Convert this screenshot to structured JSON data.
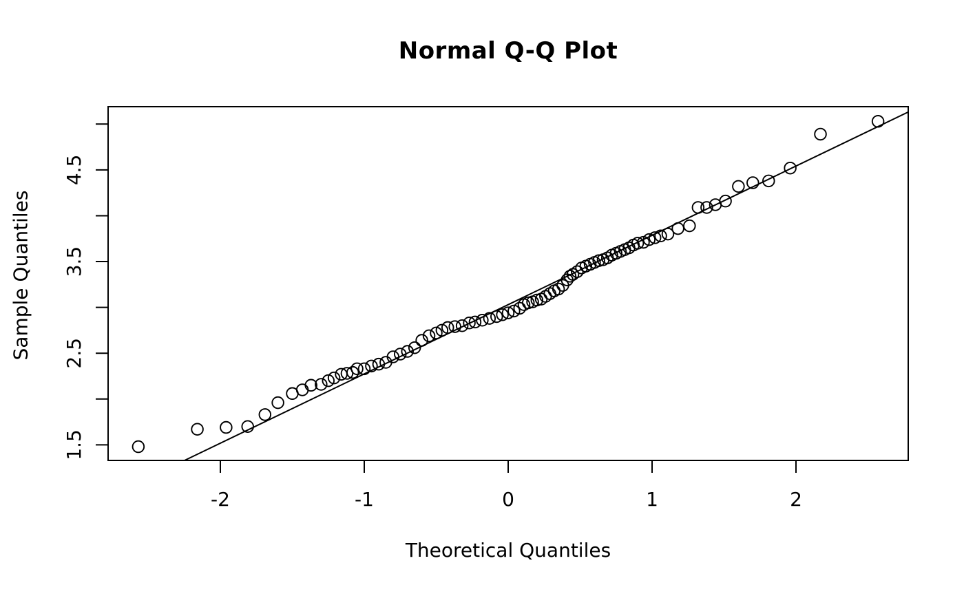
{
  "chart_data": {
    "type": "scatter",
    "title": "Normal Q-Q Plot",
    "xlabel": "Theoretical Quantiles",
    "ylabel": "Sample Quantiles",
    "xlim": [
      -2.78,
      2.78
    ],
    "ylim": [
      1.33,
      5.19
    ],
    "grid": false,
    "legend": "none",
    "x_ticks": [
      {
        "value": -2,
        "label": "-2"
      },
      {
        "value": -1,
        "label": "-1"
      },
      {
        "value": 0,
        "label": "0"
      },
      {
        "value": 1,
        "label": "1"
      },
      {
        "value": 2,
        "label": "2"
      }
    ],
    "y_ticks": [
      {
        "value": 1.5,
        "label": "1.5"
      },
      {
        "value": 2.0,
        "label": ""
      },
      {
        "value": 2.5,
        "label": "2.5"
      },
      {
        "value": 3.0,
        "label": ""
      },
      {
        "value": 3.5,
        "label": "3.5"
      },
      {
        "value": 4.0,
        "label": ""
      },
      {
        "value": 4.5,
        "label": "4.5"
      },
      {
        "value": 5.0,
        "label": ""
      }
    ],
    "ref_line": {
      "intercept": 3.03,
      "slope": 0.756
    },
    "colors": {
      "foreground": "#000000",
      "background": "#ffffff"
    },
    "marker": {
      "shape": "open-circle",
      "radius_px": 8.3,
      "stroke_px": 1.9
    },
    "points": [
      [
        -2.57,
        1.48
      ],
      [
        -2.16,
        1.67
      ],
      [
        -1.96,
        1.69
      ],
      [
        -1.81,
        1.7
      ],
      [
        -1.69,
        1.83
      ],
      [
        -1.6,
        1.96
      ],
      [
        -1.5,
        2.06
      ],
      [
        -1.43,
        2.1
      ],
      [
        -1.37,
        2.15
      ],
      [
        -1.3,
        2.16
      ],
      [
        -1.25,
        2.2
      ],
      [
        -1.21,
        2.23
      ],
      [
        -1.16,
        2.27
      ],
      [
        -1.12,
        2.28
      ],
      [
        -1.08,
        2.29
      ],
      [
        -1.05,
        2.33
      ],
      [
        -1.0,
        2.33
      ],
      [
        -0.95,
        2.36
      ],
      [
        -0.9,
        2.38
      ],
      [
        -0.85,
        2.4
      ],
      [
        -0.8,
        2.46
      ],
      [
        -0.75,
        2.49
      ],
      [
        -0.7,
        2.52
      ],
      [
        -0.65,
        2.56
      ],
      [
        -0.6,
        2.64
      ],
      [
        -0.55,
        2.69
      ],
      [
        -0.5,
        2.72
      ],
      [
        -0.46,
        2.75
      ],
      [
        -0.42,
        2.78
      ],
      [
        -0.37,
        2.79
      ],
      [
        -0.32,
        2.8
      ],
      [
        -0.27,
        2.83
      ],
      [
        -0.23,
        2.84
      ],
      [
        -0.18,
        2.86
      ],
      [
        -0.13,
        2.88
      ],
      [
        -0.08,
        2.9
      ],
      [
        -0.04,
        2.92
      ],
      [
        0.0,
        2.94
      ],
      [
        0.04,
        2.96
      ],
      [
        0.08,
        2.99
      ],
      [
        0.11,
        3.03
      ],
      [
        0.14,
        3.05
      ],
      [
        0.17,
        3.06
      ],
      [
        0.2,
        3.08
      ],
      [
        0.23,
        3.09
      ],
      [
        0.26,
        3.12
      ],
      [
        0.29,
        3.15
      ],
      [
        0.32,
        3.18
      ],
      [
        0.35,
        3.2
      ],
      [
        0.38,
        3.24
      ],
      [
        0.41,
        3.3
      ],
      [
        0.43,
        3.34
      ],
      [
        0.45,
        3.36
      ],
      [
        0.48,
        3.39
      ],
      [
        0.51,
        3.43
      ],
      [
        0.54,
        3.45
      ],
      [
        0.57,
        3.47
      ],
      [
        0.6,
        3.49
      ],
      [
        0.63,
        3.51
      ],
      [
        0.66,
        3.52
      ],
      [
        0.69,
        3.54
      ],
      [
        0.72,
        3.57
      ],
      [
        0.75,
        3.59
      ],
      [
        0.78,
        3.61
      ],
      [
        0.81,
        3.63
      ],
      [
        0.84,
        3.65
      ],
      [
        0.87,
        3.68
      ],
      [
        0.9,
        3.7
      ],
      [
        0.94,
        3.71
      ],
      [
        0.98,
        3.74
      ],
      [
        1.02,
        3.76
      ],
      [
        1.06,
        3.78
      ],
      [
        1.11,
        3.8
      ],
      [
        1.18,
        3.86
      ],
      [
        1.26,
        3.89
      ],
      [
        1.32,
        4.09
      ],
      [
        1.38,
        4.09
      ],
      [
        1.44,
        4.12
      ],
      [
        1.51,
        4.16
      ],
      [
        1.6,
        4.32
      ],
      [
        1.7,
        4.36
      ],
      [
        1.81,
        4.38
      ],
      [
        1.96,
        4.52
      ],
      [
        2.17,
        4.89
      ],
      [
        2.57,
        5.03
      ]
    ]
  }
}
